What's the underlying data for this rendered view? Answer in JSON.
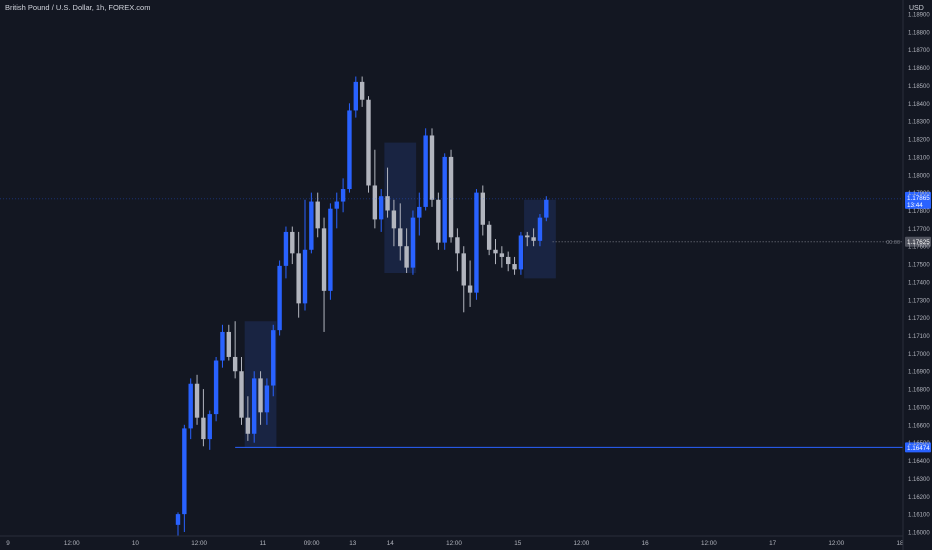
{
  "header": {
    "title": "British Pound / U.S. Dollar, 1h, FOREX.com"
  },
  "price_axis": {
    "currency": "USD"
  },
  "colors": {
    "background": "#131722",
    "bull": "#2962ff",
    "bear": "#b2b5be",
    "zone_fill": "#1c2a4d",
    "level_line": "#2962ff",
    "label_bg_blue": "#2962ff",
    "label_bg_gray": "#50535e"
  },
  "chart_data": {
    "type": "candlestick",
    "title": "British Pound / U.S. Dollar, 1h, FOREX.com",
    "ylim": [
      1.16,
      1.189
    ],
    "y_ticks": [
      "1.18900",
      "1.18800",
      "1.18700",
      "1.18600",
      "1.18500",
      "1.18400",
      "1.18300",
      "1.18200",
      "1.18100",
      "1.18000",
      "1.17900",
      "1.17800",
      "1.17700",
      "1.17600",
      "1.17500",
      "1.17400",
      "1.17300",
      "1.17200",
      "1.17100",
      "1.17000",
      "1.16900",
      "1.16800",
      "1.16700",
      "1.16600",
      "1.16500",
      "1.16400",
      "1.16300",
      "1.16200",
      "1.16100",
      "1.16000"
    ],
    "x_ticks": [
      "9",
      "12:00",
      "10",
      "12:00",
      "11",
      "09:00",
      "13",
      "14",
      "12:00",
      "15",
      "12:00",
      "16",
      "12:00",
      "17",
      "12:00",
      "18"
    ],
    "tick_slot": [
      0,
      17,
      34,
      51,
      68,
      81,
      92,
      102,
      119,
      136,
      153,
      170,
      187,
      204,
      221,
      238
    ],
    "candles": [
      {
        "o": 1.1604,
        "h": 1.1611,
        "l": 1.1598,
        "c": 1.161
      },
      {
        "o": 1.161,
        "h": 1.166,
        "l": 1.16,
        "c": 1.1658
      },
      {
        "o": 1.1658,
        "h": 1.1686,
        "l": 1.1652,
        "c": 1.1683
      },
      {
        "o": 1.1683,
        "h": 1.1688,
        "l": 1.166,
        "c": 1.1664
      },
      {
        "o": 1.1664,
        "h": 1.168,
        "l": 1.1648,
        "c": 1.1652
      },
      {
        "o": 1.1652,
        "h": 1.1668,
        "l": 1.1646,
        "c": 1.1666
      },
      {
        "o": 1.1666,
        "h": 1.1698,
        "l": 1.1662,
        "c": 1.1696
      },
      {
        "o": 1.1696,
        "h": 1.1716,
        "l": 1.1692,
        "c": 1.1712
      },
      {
        "o": 1.1712,
        "h": 1.1716,
        "l": 1.1696,
        "c": 1.1698
      },
      {
        "o": 1.1698,
        "h": 1.1718,
        "l": 1.1686,
        "c": 1.169
      },
      {
        "o": 1.169,
        "h": 1.1698,
        "l": 1.166,
        "c": 1.1664
      },
      {
        "o": 1.1664,
        "h": 1.1676,
        "l": 1.1651,
        "c": 1.1655
      },
      {
        "o": 1.1655,
        "h": 1.169,
        "l": 1.165,
        "c": 1.1686
      },
      {
        "o": 1.1686,
        "h": 1.169,
        "l": 1.166,
        "c": 1.1667
      },
      {
        "o": 1.1667,
        "h": 1.1686,
        "l": 1.166,
        "c": 1.1682
      },
      {
        "o": 1.1682,
        "h": 1.1716,
        "l": 1.1676,
        "c": 1.1713
      },
      {
        "o": 1.1713,
        "h": 1.1752,
        "l": 1.171,
        "c": 1.1749
      },
      {
        "o": 1.1749,
        "h": 1.1771,
        "l": 1.1742,
        "c": 1.1768
      },
      {
        "o": 1.1768,
        "h": 1.1771,
        "l": 1.175,
        "c": 1.1756
      },
      {
        "o": 1.1756,
        "h": 1.1768,
        "l": 1.172,
        "c": 1.1728
      },
      {
        "o": 1.1728,
        "h": 1.1786,
        "l": 1.1724,
        "c": 1.1758
      },
      {
        "o": 1.1758,
        "h": 1.179,
        "l": 1.1756,
        "c": 1.1785
      },
      {
        "o": 1.1785,
        "h": 1.179,
        "l": 1.1765,
        "c": 1.177
      },
      {
        "o": 1.177,
        "h": 1.1776,
        "l": 1.1712,
        "c": 1.1735
      },
      {
        "o": 1.1735,
        "h": 1.1784,
        "l": 1.173,
        "c": 1.1781
      },
      {
        "o": 1.1781,
        "h": 1.179,
        "l": 1.177,
        "c": 1.1785
      },
      {
        "o": 1.1785,
        "h": 1.1798,
        "l": 1.1779,
        "c": 1.1792
      },
      {
        "o": 1.1792,
        "h": 1.184,
        "l": 1.179,
        "c": 1.1836
      },
      {
        "o": 1.1836,
        "h": 1.1855,
        "l": 1.1832,
        "c": 1.1852
      },
      {
        "o": 1.1852,
        "h": 1.1855,
        "l": 1.1838,
        "c": 1.1842
      },
      {
        "o": 1.1842,
        "h": 1.1844,
        "l": 1.179,
        "c": 1.1794
      },
      {
        "o": 1.1794,
        "h": 1.1814,
        "l": 1.177,
        "c": 1.1775
      },
      {
        "o": 1.1775,
        "h": 1.1792,
        "l": 1.1768,
        "c": 1.1788
      },
      {
        "o": 1.1788,
        "h": 1.1804,
        "l": 1.1776,
        "c": 1.178
      },
      {
        "o": 1.178,
        "h": 1.1786,
        "l": 1.176,
        "c": 1.177
      },
      {
        "o": 1.177,
        "h": 1.1784,
        "l": 1.1752,
        "c": 1.176
      },
      {
        "o": 1.176,
        "h": 1.177,
        "l": 1.1745,
        "c": 1.1748
      },
      {
        "o": 1.1748,
        "h": 1.178,
        "l": 1.1744,
        "c": 1.1776
      },
      {
        "o": 1.1776,
        "h": 1.179,
        "l": 1.1766,
        "c": 1.1782
      },
      {
        "o": 1.1782,
        "h": 1.1826,
        "l": 1.178,
        "c": 1.1822
      },
      {
        "o": 1.1822,
        "h": 1.1826,
        "l": 1.1782,
        "c": 1.1786
      },
      {
        "o": 1.1786,
        "h": 1.179,
        "l": 1.1758,
        "c": 1.1762
      },
      {
        "o": 1.1762,
        "h": 1.1812,
        "l": 1.1758,
        "c": 1.181
      },
      {
        "o": 1.181,
        "h": 1.1814,
        "l": 1.1762,
        "c": 1.1765
      },
      {
        "o": 1.1765,
        "h": 1.177,
        "l": 1.1746,
        "c": 1.1756
      },
      {
        "o": 1.1756,
        "h": 1.176,
        "l": 1.1723,
        "c": 1.1738
      },
      {
        "o": 1.1738,
        "h": 1.1752,
        "l": 1.1726,
        "c": 1.1734
      },
      {
        "o": 1.1734,
        "h": 1.1792,
        "l": 1.173,
        "c": 1.179
      },
      {
        "o": 1.179,
        "h": 1.1794,
        "l": 1.1766,
        "c": 1.1772
      },
      {
        "o": 1.1772,
        "h": 1.1774,
        "l": 1.1755,
        "c": 1.1758
      },
      {
        "o": 1.1758,
        "h": 1.1764,
        "l": 1.175,
        "c": 1.1756
      },
      {
        "o": 1.1756,
        "h": 1.176,
        "l": 1.1748,
        "c": 1.1754
      },
      {
        "o": 1.1754,
        "h": 1.1757,
        "l": 1.1746,
        "c": 1.175
      },
      {
        "o": 1.175,
        "h": 1.1754,
        "l": 1.1744,
        "c": 1.1747
      },
      {
        "o": 1.1747,
        "h": 1.1768,
        "l": 1.1744,
        "c": 1.1766
      },
      {
        "o": 1.1766,
        "h": 1.1768,
        "l": 1.176,
        "c": 1.1765
      },
      {
        "o": 1.1765,
        "h": 1.177,
        "l": 1.176,
        "c": 1.1763
      },
      {
        "o": 1.1763,
        "h": 1.1778,
        "l": 1.176,
        "c": 1.1776
      },
      {
        "o": 1.1776,
        "h": 1.1788,
        "l": 1.1774,
        "c": 1.1786
      }
    ],
    "zones": [
      {
        "from": 11,
        "to": 15,
        "top": 1.1718,
        "bottom": 1.1647
      },
      {
        "from": 33,
        "to": 37,
        "top": 1.1818,
        "bottom": 1.1745
      },
      {
        "from": 55,
        "to": 59,
        "top": 1.1786,
        "bottom": 1.1742
      }
    ],
    "levels": [
      {
        "price": 1.16474,
        "label": "1.16474",
        "from": 9,
        "style": "solid",
        "color": "blue"
      },
      {
        "price": 1.17625,
        "label": "1.17625",
        "from": 59,
        "style": "dotted",
        "color": "gray",
        "side_text": "00:00"
      }
    ],
    "current_price": {
      "price": 1.17865,
      "label": "1.17865",
      "countdown": "13:44"
    }
  }
}
